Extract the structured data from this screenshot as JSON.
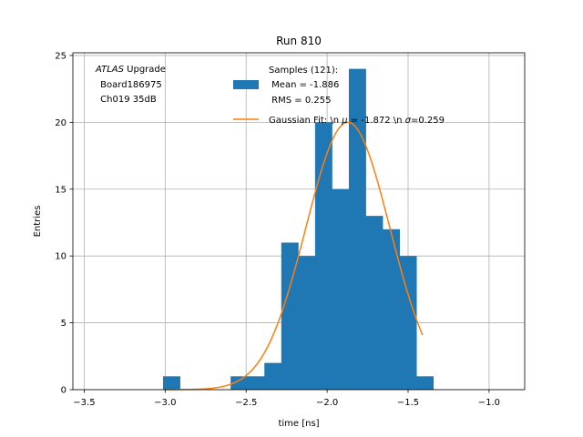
{
  "chart_data": {
    "type": "bar",
    "title": "Run 810",
    "xlabel": "time [ns]",
    "ylabel": "Entries",
    "xlim": [
      -3.57,
      -0.78
    ],
    "ylim": [
      0,
      25.2
    ],
    "grid": true,
    "x_ticks": [
      -3.5,
      -3.0,
      -2.5,
      -2.0,
      -1.5,
      -1.0
    ],
    "x_tick_labels": [
      "−3.5",
      "−3.0",
      "−2.5",
      "−2.0",
      "−1.5",
      "−1.0"
    ],
    "y_ticks": [
      0,
      5,
      10,
      15,
      20,
      25
    ],
    "y_tick_labels": [
      "0",
      "5",
      "10",
      "15",
      "20",
      "25"
    ],
    "histogram": {
      "bin_edges": [
        -3.0132,
        -2.9089,
        -2.8046,
        -2.7003,
        -2.596,
        -2.4917,
        -2.3874,
        -2.2831,
        -2.1788,
        -2.0745,
        -1.9702,
        -1.8659,
        -1.7616,
        -1.6573,
        -1.553,
        -1.4487,
        -1.3444
      ],
      "counts": [
        1,
        0,
        0,
        0,
        1,
        1,
        2,
        11,
        10,
        20,
        15,
        24,
        13,
        12,
        10,
        1
      ],
      "color": "#1f77b4"
    },
    "fit": {
      "mu": -1.872,
      "sigma": 0.259,
      "amplitude": 20,
      "x_range": [
        -3.0,
        -1.41
      ],
      "color": "#ff7f0e"
    },
    "annotation": {
      "italic": "ATLAS",
      "rest": " Upgrade",
      "lines": [
        " Board186975",
        " Ch019 35dB"
      ]
    },
    "legend": {
      "placement": "top-right",
      "entries": [
        {
          "kind": "patch",
          "color": "#1f77b4",
          "lines": [
            "Samples (121):",
            " Mean = -1.886",
            " RMS = 0.255"
          ]
        },
        {
          "kind": "line",
          "color": "#ff7f0e",
          "prefix": "Gaussian Fit: \\n ",
          "mu_symbol": "μ",
          "middle": " = -1.872 \\n ",
          "sigma_symbol": "σ",
          "suffix": "=0.259"
        }
      ]
    }
  }
}
